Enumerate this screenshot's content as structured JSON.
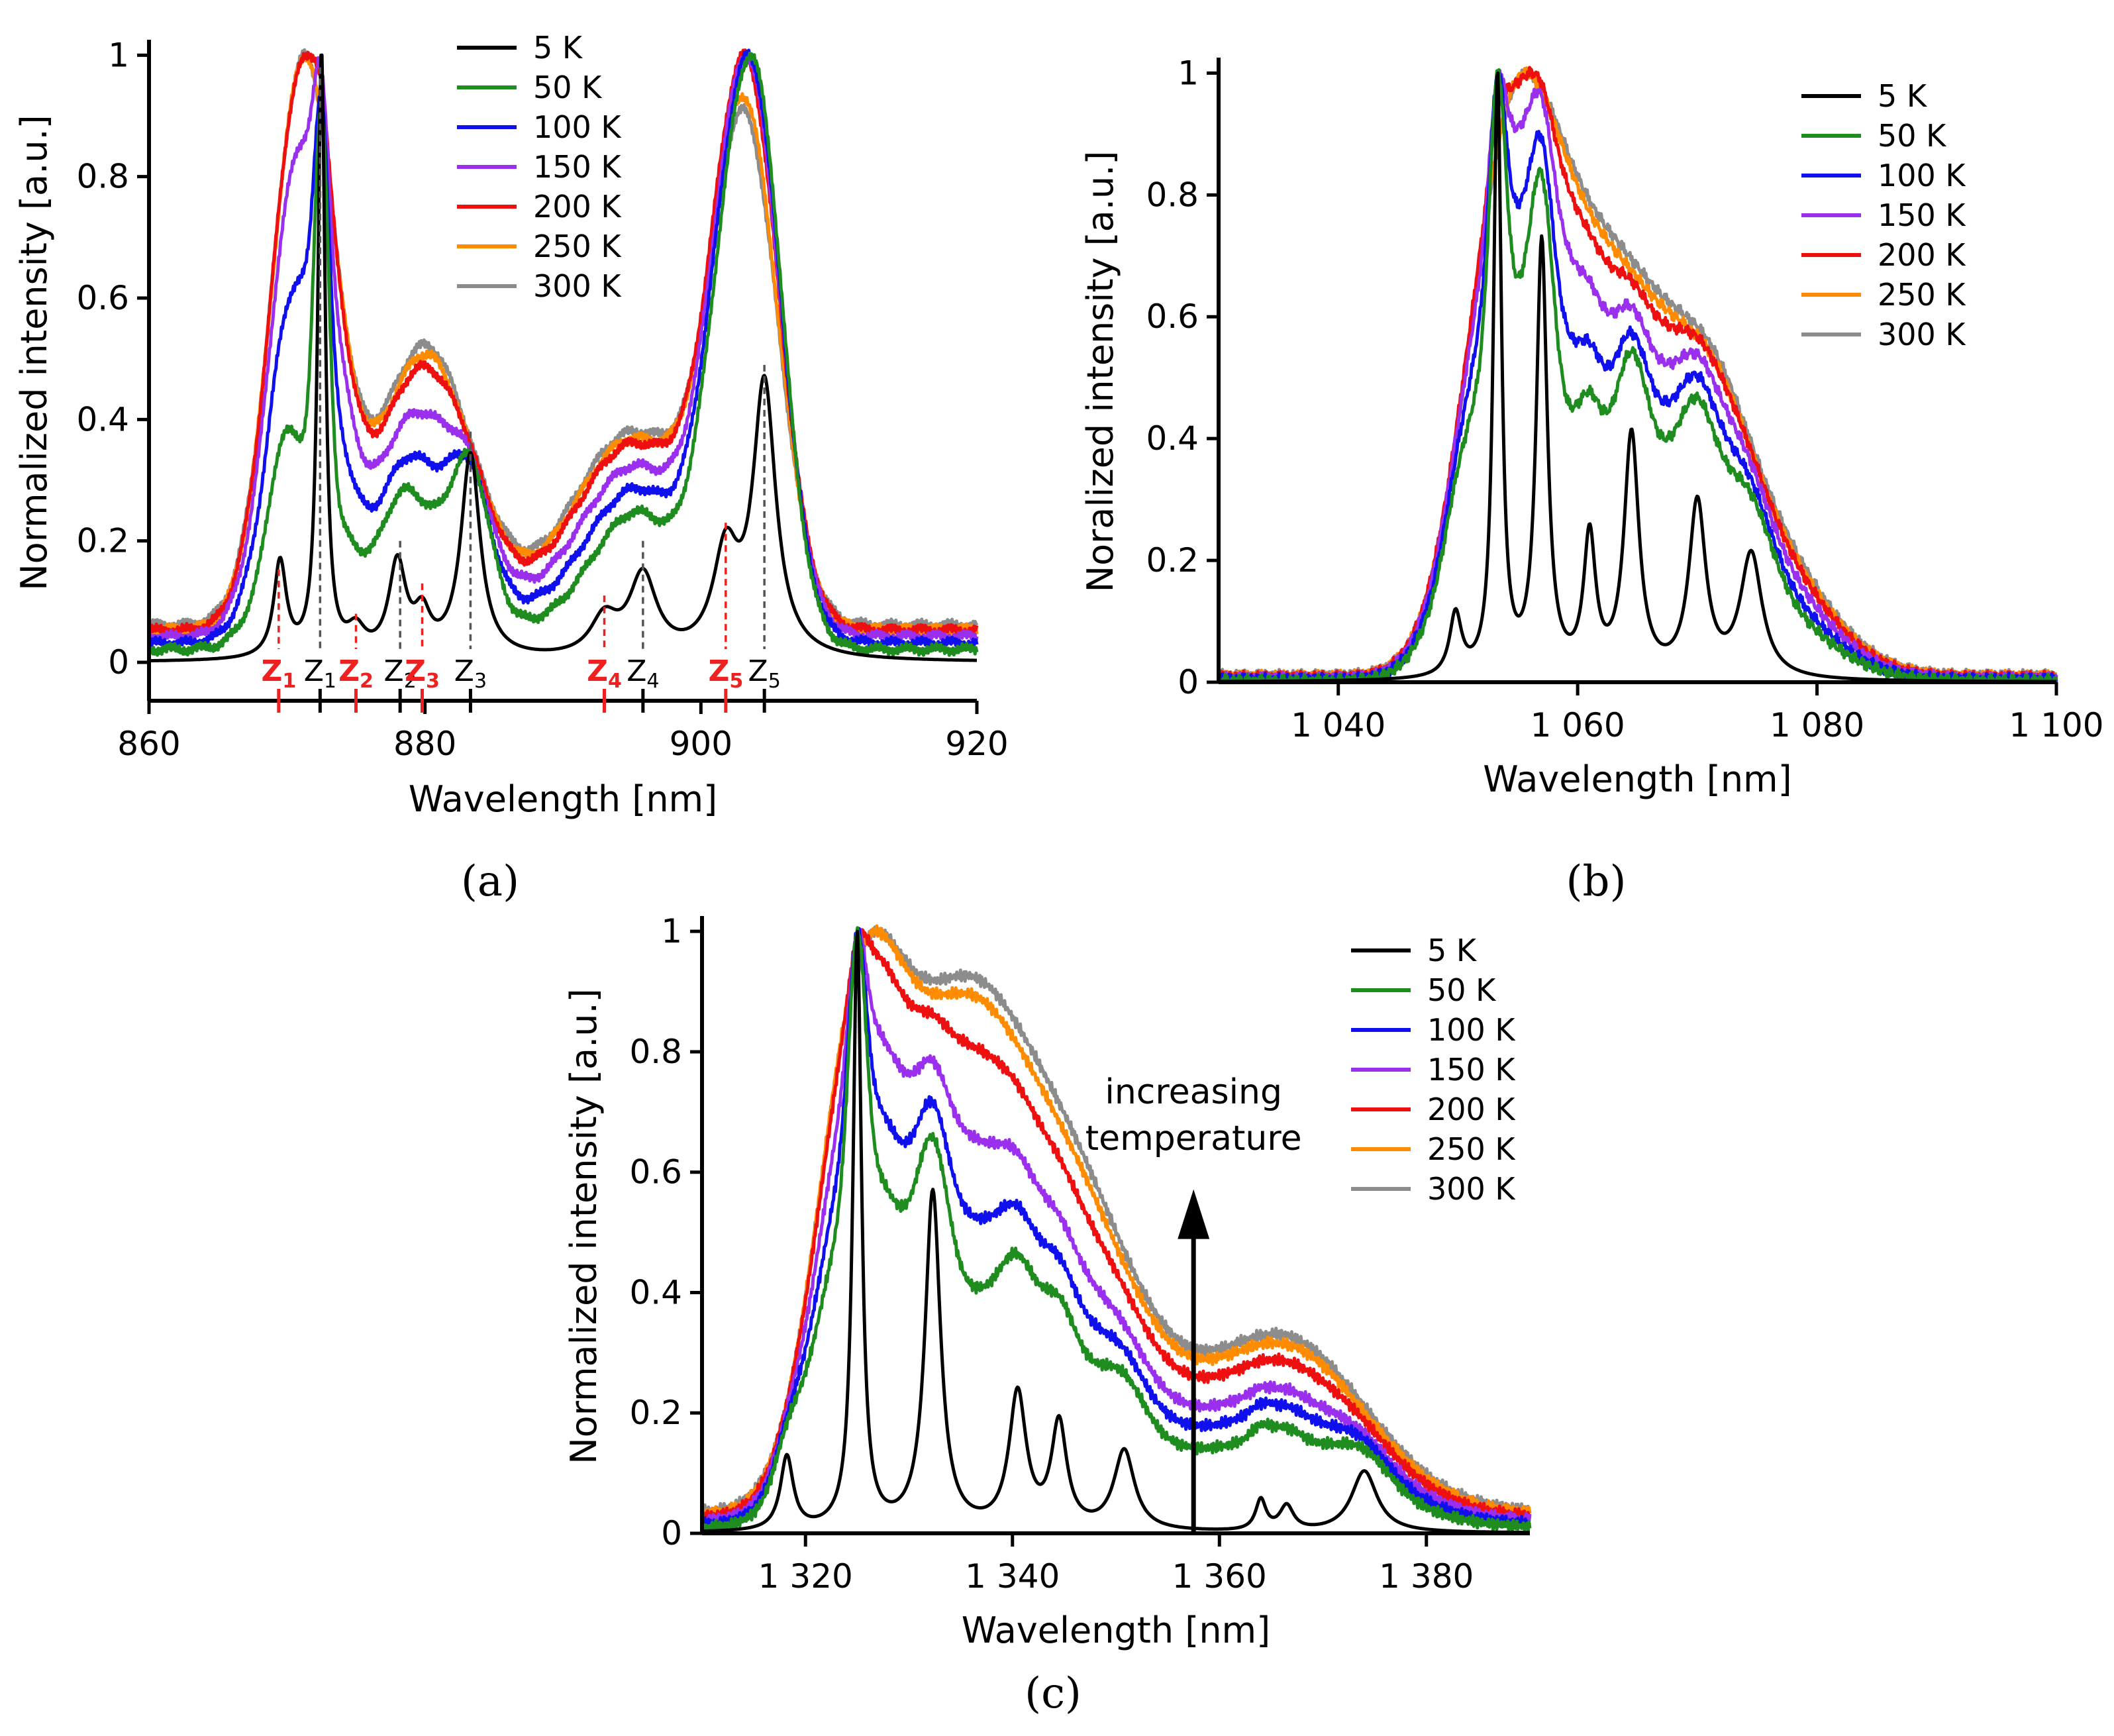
{
  "panels": [
    {
      "label": "(a)",
      "chart_data": {
        "type": "line",
        "xlabel": "Wavelength [nm]",
        "ylabel": "Normalized intensity [a.u.]",
        "xlim": [
          860,
          920
        ],
        "ylim": [
          0,
          1.02
        ],
        "xticks": [
          {
            "v": 860,
            "t": "860"
          },
          {
            "v": 880,
            "t": "880"
          },
          {
            "v": 900,
            "t": "900"
          },
          {
            "v": 920,
            "t": "920"
          }
        ],
        "yticks": [
          {
            "v": 0,
            "t": "0"
          },
          {
            "v": 0.2,
            "t": "0.2"
          },
          {
            "v": 0.4,
            "t": "0.4"
          },
          {
            "v": 0.6,
            "t": "0.6"
          },
          {
            "v": 0.8,
            "t": "0.8"
          },
          {
            "v": 1,
            "t": "1"
          }
        ],
        "legend_position": "top-right",
        "baseline": [
          0.0,
          0.015,
          0.025,
          0.035,
          0.045,
          0.05,
          0.06
        ],
        "bg_peaks": [
          {
            "c": 871.2,
            "w": 2.3,
            "a": [
              0,
              0.22,
              0.45,
              0.65,
              0.78,
              0.86,
              0.9
            ]
          },
          {
            "c": 880.0,
            "w": 3.5,
            "a": [
              0,
              0.12,
              0.2,
              0.28,
              0.36,
              0.42,
              0.45
            ]
          },
          {
            "c": 895.0,
            "w": 4.5,
            "a": [
              0,
              0.09,
              0.15,
              0.2,
              0.25,
              0.29,
              0.31
            ]
          },
          {
            "c": 903.2,
            "w": 2.4,
            "a": [
              0,
              0.48,
              0.6,
              0.67,
              0.73,
              0.76,
              0.77
            ]
          }
        ],
        "fine_peaks": [
          {
            "c": 869.5,
            "w": 0.55,
            "a": 0.155
          },
          {
            "c": 872.5,
            "w": 0.32,
            "a": 0.98
          },
          {
            "c": 875.0,
            "w": 0.8,
            "a": 0.04
          },
          {
            "c": 878.0,
            "w": 0.75,
            "a": 0.15
          },
          {
            "c": 879.8,
            "w": 0.7,
            "a": 0.06
          },
          {
            "c": 883.3,
            "w": 0.85,
            "a": 0.33
          },
          {
            "c": 893.0,
            "w": 1.2,
            "a": 0.06
          },
          {
            "c": 895.8,
            "w": 1.2,
            "a": 0.13
          },
          {
            "c": 901.8,
            "w": 1.1,
            "a": 0.16
          },
          {
            "c": 904.6,
            "w": 1.0,
            "a": 0.44
          }
        ],
        "annotations": [
          {
            "x": 869.4,
            "y": 0.153,
            "t": "Z1",
            "red": true
          },
          {
            "x": 872.4,
            "y": 0.98,
            "t": "Z1",
            "red": false
          },
          {
            "x": 875.0,
            "y": 0.08,
            "t": "Z2",
            "red": true
          },
          {
            "x": 878.2,
            "y": 0.2,
            "t": "Z2",
            "red": false
          },
          {
            "x": 879.8,
            "y": 0.13,
            "t": "Z3",
            "red": true
          },
          {
            "x": 883.3,
            "y": 0.38,
            "t": "Z3",
            "red": false
          },
          {
            "x": 893.0,
            "y": 0.11,
            "t": "Z4",
            "red": true
          },
          {
            "x": 895.8,
            "y": 0.2,
            "t": "Z4",
            "red": false
          },
          {
            "x": 901.8,
            "y": 0.23,
            "t": "Z5",
            "red": true
          },
          {
            "x": 904.6,
            "y": 0.49,
            "t": "Z5",
            "red": false
          }
        ]
      }
    },
    {
      "label": "(b)",
      "chart_data": {
        "type": "line",
        "xlabel": "Wavelength [nm]",
        "ylabel": "Noralized intensity [a.u.]",
        "xlim": [
          1030,
          1100
        ],
        "ylim": [
          0,
          1.02
        ],
        "xticks": [
          {
            "v": 1040,
            "t": "1 040"
          },
          {
            "v": 1060,
            "t": "1 060"
          },
          {
            "v": 1080,
            "t": "1 080"
          },
          {
            "v": 1100,
            "t": "1 100"
          }
        ],
        "yticks": [
          {
            "v": 0,
            "t": "0"
          },
          {
            "v": 0.2,
            "t": "0.2"
          },
          {
            "v": 0.4,
            "t": "0.4"
          },
          {
            "v": 0.6,
            "t": "0.6"
          },
          {
            "v": 0.8,
            "t": "0.8"
          },
          {
            "v": 1,
            "t": "1"
          }
        ],
        "legend_position": "top-right",
        "baseline": [
          0.0,
          0.003,
          0.005,
          0.007,
          0.009,
          0.011,
          0.013
        ],
        "bg_peaks": [
          {
            "c": 1053.8,
            "w": 3.5,
            "a": [
              0,
              0.55,
              0.62,
              0.68,
              0.72,
              0.74,
              0.75
            ]
          },
          {
            "c": 1058.5,
            "w": 4.0,
            "a": [
              0,
              0.2,
              0.3,
              0.42,
              0.52,
              0.6,
              0.64
            ]
          },
          {
            "c": 1064.5,
            "w": 3.5,
            "a": [
              0,
              0.27,
              0.3,
              0.34,
              0.4,
              0.45,
              0.48
            ]
          },
          {
            "c": 1070.5,
            "w": 3.5,
            "a": [
              0,
              0.22,
              0.27,
              0.31,
              0.35,
              0.38,
              0.4
            ]
          },
          {
            "c": 1075.5,
            "w": 5.0,
            "a": [
              0,
              0.12,
              0.14,
              0.17,
              0.2,
              0.22,
              0.24
            ]
          }
        ],
        "fine_peaks": [
          {
            "c": 1049.8,
            "w": 0.6,
            "a": 0.1
          },
          {
            "c": 1053.3,
            "w": 0.4,
            "a": 0.97
          },
          {
            "c": 1057.0,
            "w": 0.55,
            "a": 0.7
          },
          {
            "c": 1061.0,
            "w": 0.6,
            "a": 0.22
          },
          {
            "c": 1064.5,
            "w": 0.75,
            "a": 0.39
          },
          {
            "c": 1070.0,
            "w": 0.85,
            "a": 0.28
          },
          {
            "c": 1074.5,
            "w": 1.1,
            "a": 0.2
          }
        ],
        "annotations": []
      }
    },
    {
      "label": "(c)",
      "chart_data": {
        "type": "line",
        "xlabel": "Wavelength [nm]",
        "ylabel": "Normalized intensity [a.u.]",
        "xlim": [
          1310,
          1390
        ],
        "ylim": [
          0,
          1.02
        ],
        "xticks": [
          {
            "v": 1320,
            "t": "1 320"
          },
          {
            "v": 1340,
            "t": "1 340"
          },
          {
            "v": 1360,
            "t": "1 360"
          },
          {
            "v": 1380,
            "t": "1 380"
          }
        ],
        "yticks": [
          {
            "v": 0,
            "t": "0"
          },
          {
            "v": 0.2,
            "t": "0.2"
          },
          {
            "v": 0.4,
            "t": "0.4"
          },
          {
            "v": 0.6,
            "t": "0.6"
          },
          {
            "v": 0.8,
            "t": "0.8"
          },
          {
            "v": 1,
            "t": "1"
          }
        ],
        "legend_position": "top-right",
        "baseline": [
          0.0,
          0.01,
          0.015,
          0.02,
          0.025,
          0.03,
          0.035
        ],
        "bg_peaks": [
          {
            "c": 1325.0,
            "w": 4.0,
            "a": [
              0,
              0.5,
              0.55,
              0.6,
              0.63,
              0.65,
              0.66
            ]
          },
          {
            "c": 1334.0,
            "w": 6.0,
            "a": [
              0,
              0.3,
              0.38,
              0.47,
              0.55,
              0.62,
              0.66
            ]
          },
          {
            "c": 1345.0,
            "w": 7.0,
            "a": [
              0,
              0.25,
              0.3,
              0.35,
              0.41,
              0.47,
              0.51
            ]
          },
          {
            "c": 1366.0,
            "w": 8.0,
            "a": [
              0,
              0.15,
              0.18,
              0.2,
              0.23,
              0.26,
              0.28
            ]
          }
        ],
        "fine_peaks": [
          {
            "c": 1318.2,
            "w": 0.75,
            "a": 0.12
          },
          {
            "c": 1325.0,
            "w": 0.5,
            "a": 0.97
          },
          {
            "c": 1332.3,
            "w": 0.9,
            "a": 0.55
          },
          {
            "c": 1340.5,
            "w": 1.0,
            "a": 0.22
          },
          {
            "c": 1344.5,
            "w": 0.9,
            "a": 0.17
          },
          {
            "c": 1350.8,
            "w": 1.2,
            "a": 0.13
          },
          {
            "c": 1364.0,
            "w": 0.6,
            "a": 0.05
          },
          {
            "c": 1366.5,
            "w": 0.8,
            "a": 0.04
          },
          {
            "c": 1374.0,
            "w": 1.5,
            "a": 0.1
          }
        ],
        "annotations": [],
        "arrow_text": [
          "increasing",
          "temperature"
        ]
      }
    }
  ],
  "series": [
    {
      "name": "5 K",
      "color": "#000000"
    },
    {
      "name": "50 K",
      "color": "#1e8c1e"
    },
    {
      "name": "100 K",
      "color": "#1010ee"
    },
    {
      "name": "150 K",
      "color": "#9a30ee"
    },
    {
      "name": "200 K",
      "color": "#ee1010"
    },
    {
      "name": "250 K",
      "color": "#ff8c00"
    },
    {
      "name": "300 K",
      "color": "#8c8c8c"
    }
  ]
}
